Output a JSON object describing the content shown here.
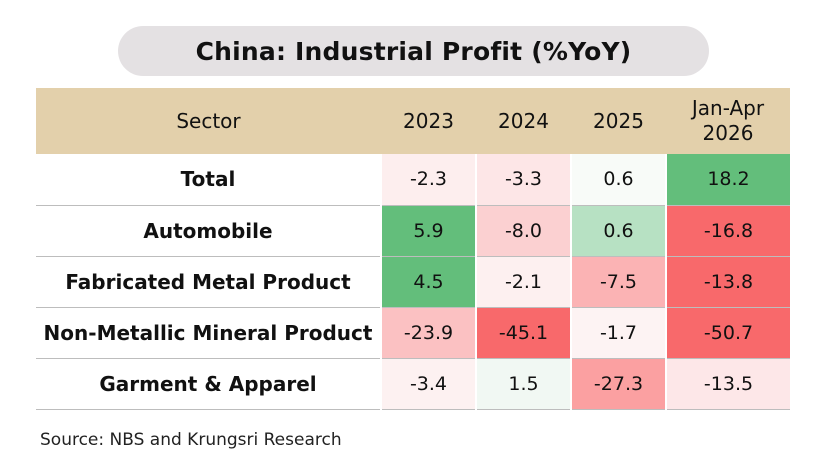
{
  "title": "China: Industrial Profit (%YoY)",
  "source": "Source: NBS and Krungsri Research",
  "chart_data": {
    "type": "table",
    "columns": [
      "Sector",
      "2023",
      "2024",
      "2025",
      "Jan-Apr 2026"
    ],
    "header_lines": [
      [
        "Sector"
      ],
      [
        "2023"
      ],
      [
        "2024"
      ],
      [
        "2025"
      ],
      [
        "Jan-Apr",
        "2026"
      ]
    ],
    "rows": [
      {
        "sector": "Total",
        "values": [
          "-2.3",
          "-3.3",
          "0.6",
          "18.2"
        ],
        "colors": [
          "#fdeeee",
          "#fde6e7",
          "#f8fbf8",
          "#63be7b"
        ]
      },
      {
        "sector": "Automobile",
        "values": [
          "5.9",
          "-8.0",
          "0.6",
          "-16.8"
        ],
        "colors": [
          "#63be7b",
          "#fbd0d1",
          "#b7e1c3",
          "#f8696b"
        ]
      },
      {
        "sector": "Fabricated Metal Product",
        "values": [
          "4.5",
          "-2.1",
          "-7.5",
          "-13.8"
        ],
        "colors": [
          "#63be7b",
          "#fdf0f0",
          "#fbb3b4",
          "#f8696b"
        ]
      },
      {
        "sector": "Non-Metallic Mineral Product",
        "values": [
          "-23.9",
          "-45.1",
          "-1.7",
          "-50.7"
        ],
        "colors": [
          "#fbc1c2",
          "#f8696b",
          "#fdf3f3",
          "#f8696b"
        ]
      },
      {
        "sector": "Garment & Apparel",
        "values": [
          "-3.4",
          "1.5",
          "-27.3",
          "-13.5"
        ],
        "colors": [
          "#fdf1f1",
          "#f1f8f3",
          "#fba0a1",
          "#fde7e8"
        ]
      }
    ],
    "header_color": "#e3d0ab",
    "positive_color": "#63be7b",
    "negative_color": "#f8696b"
  }
}
